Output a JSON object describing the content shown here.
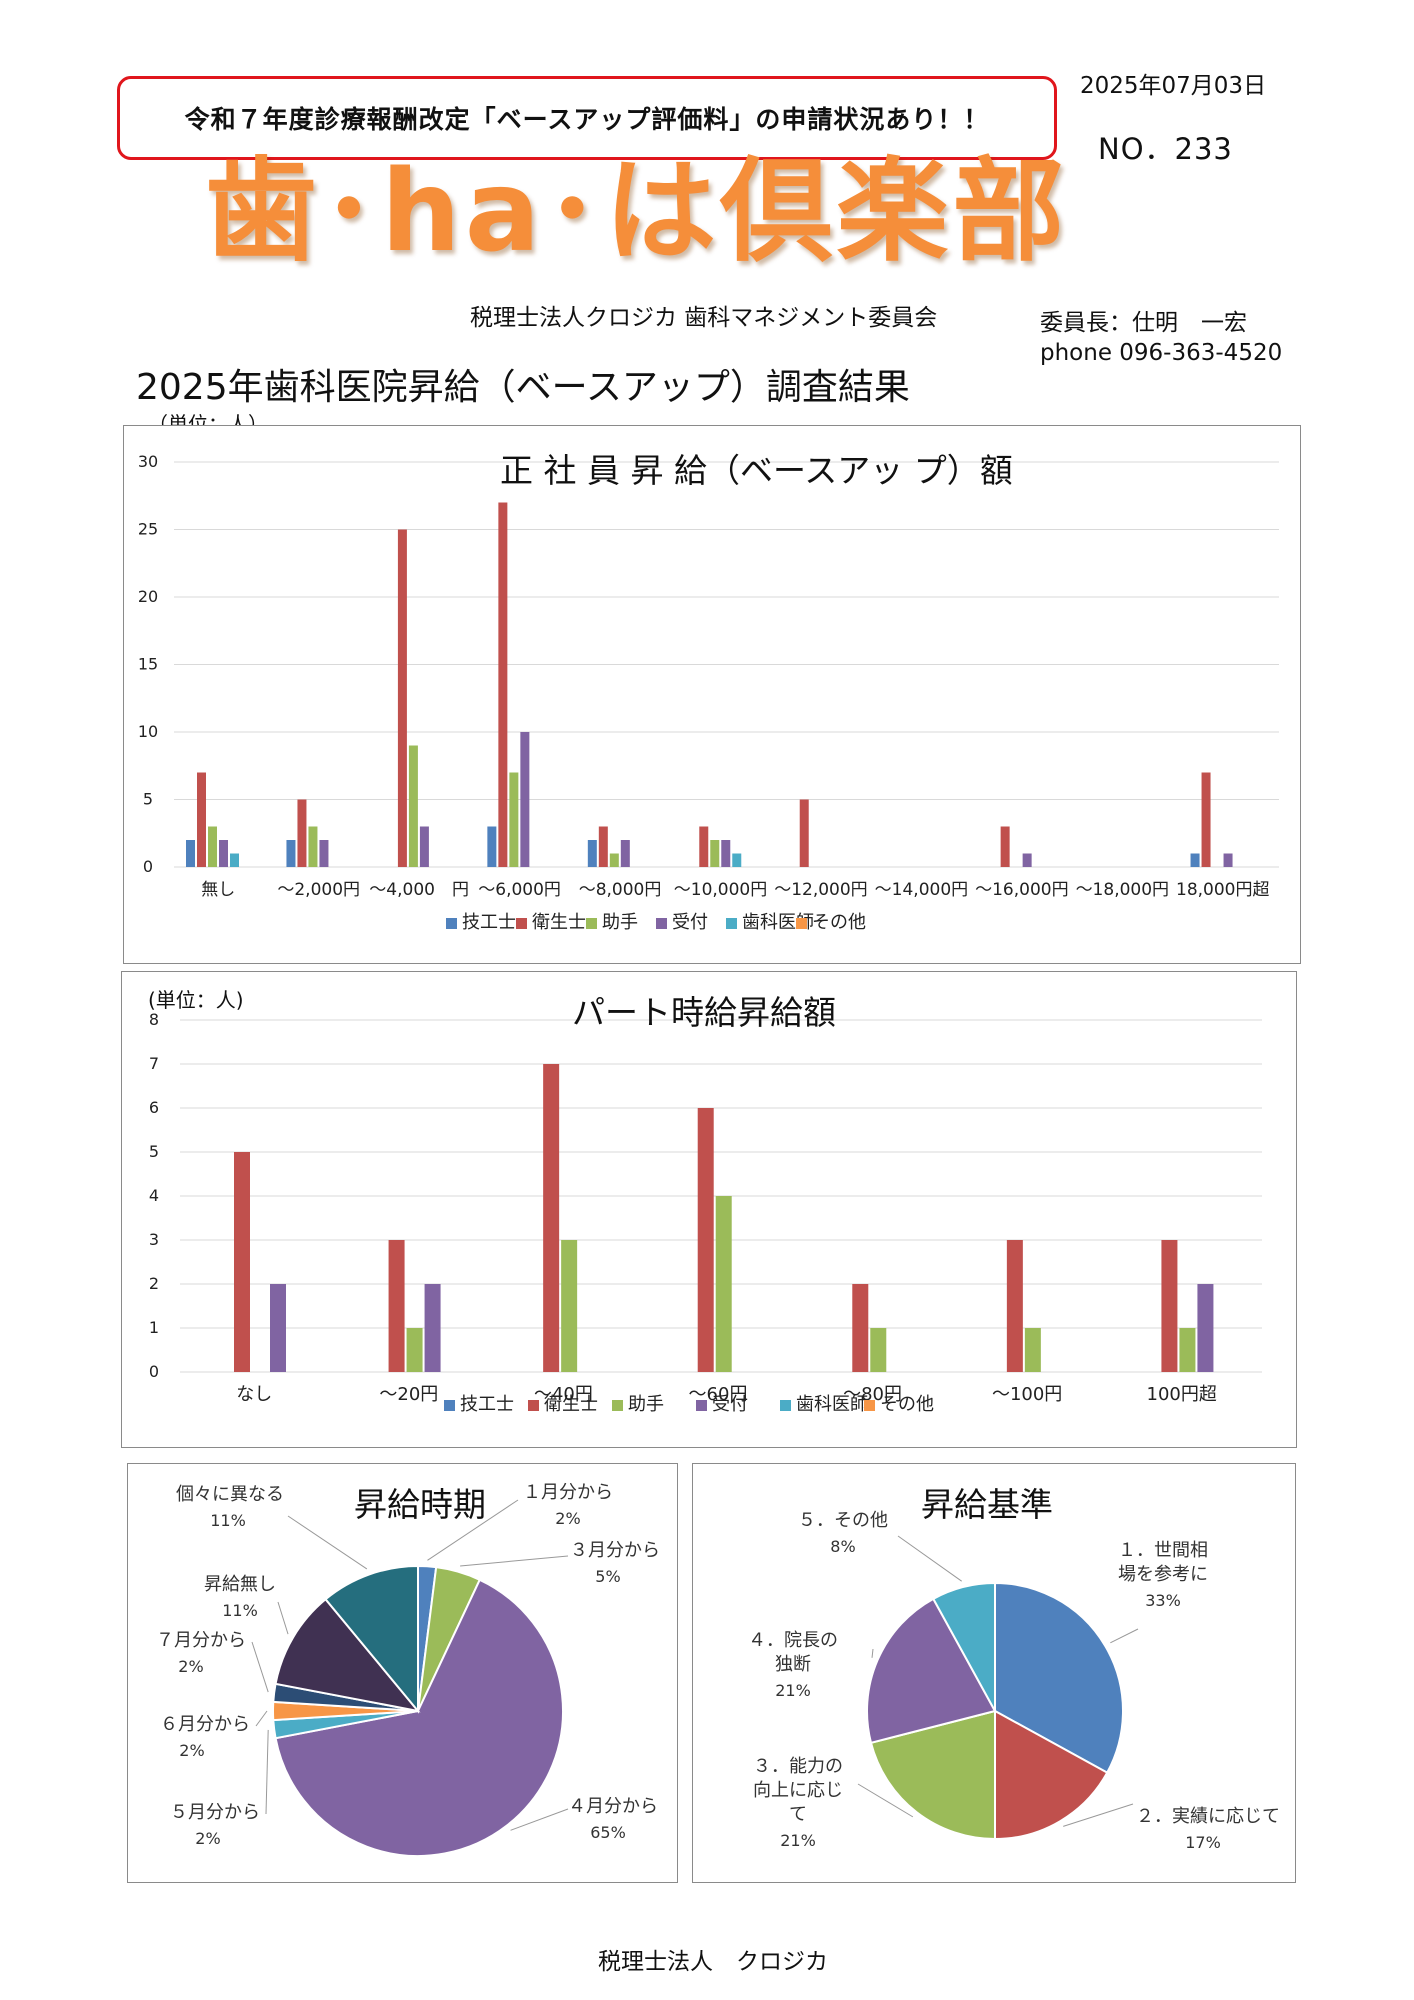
{
  "header": {
    "notice": "令和７年度診療報酬改定「ベースアップ評価料」の申請状況あり！！",
    "date": "2025年07月03日",
    "issue_no": "NO．233",
    "logo_text": "歯･ha･は倶楽部",
    "organization": "税理士法人クロジカ 歯科マネジメント委員会",
    "chair": "委員長：仕明　一宏",
    "phone": "phone 096-363-4520"
  },
  "main": {
    "title": "2025年歯科医院昇給（ベースアップ）調査結果"
  },
  "footer": {
    "text": "税理士法人　クロジカ"
  },
  "colors": {
    "技工士": "#4f81bd",
    "衛生士": "#c0504d",
    "助手": "#9bbb59",
    "受付": "#8064a2",
    "歯科医師": "#4bacc6",
    "その他": "#f79646"
  },
  "chart_data": [
    {
      "type": "bar",
      "title": "正 社 員 昇 給（ベースアッ プ）額",
      "unit_label": "（単位：人）",
      "categories": [
        "無し",
        "～2,000円",
        "～4,000　円",
        "～6,000円",
        "～8,000円",
        "～10,000円",
        "～12,000円",
        "～14,000円",
        "～16,000円",
        "～18,000円",
        "18,000円超"
      ],
      "ylim": [
        0,
        30
      ],
      "yticks": [
        0,
        5,
        10,
        15,
        20,
        25,
        30
      ],
      "grid": true,
      "legend": "bottom",
      "series": [
        {
          "name": "技工士",
          "values": [
            2,
            2,
            0,
            3,
            2,
            0,
            0,
            0,
            0,
            0,
            1
          ]
        },
        {
          "name": "衛生士",
          "values": [
            7,
            5,
            25,
            27,
            3,
            3,
            5,
            0,
            3,
            0,
            7
          ]
        },
        {
          "name": "助手",
          "values": [
            3,
            3,
            9,
            7,
            1,
            2,
            0,
            0,
            0,
            0,
            0
          ]
        },
        {
          "name": "受付",
          "values": [
            2,
            2,
            3,
            10,
            2,
            2,
            0,
            0,
            1,
            0,
            1
          ]
        },
        {
          "name": "歯科医師",
          "values": [
            1,
            0,
            0,
            0,
            0,
            1,
            0,
            0,
            0,
            0,
            0
          ]
        },
        {
          "name": "その他",
          "values": [
            0,
            0,
            0,
            0,
            0,
            0,
            0,
            0,
            0,
            0,
            0
          ]
        }
      ]
    },
    {
      "type": "bar",
      "title": "パート時給昇給額",
      "unit_label": "(単位：人)",
      "categories": [
        "なし",
        "～20円",
        "～40円",
        "～60円",
        "～80円",
        "～100円",
        "100円超"
      ],
      "ylim": [
        0,
        8
      ],
      "yticks": [
        0,
        1,
        2,
        3,
        4,
        5,
        6,
        7,
        8
      ],
      "grid": true,
      "legend": "bottom",
      "series": [
        {
          "name": "技工士",
          "values": [
            0,
            0,
            0,
            0,
            0,
            0,
            0
          ]
        },
        {
          "name": "衛生士",
          "values": [
            5,
            3,
            7,
            6,
            2,
            3,
            3
          ]
        },
        {
          "name": "助手",
          "values": [
            0,
            1,
            3,
            4,
            1,
            1,
            1
          ]
        },
        {
          "name": "受付",
          "values": [
            2,
            2,
            0,
            0,
            0,
            0,
            2
          ]
        },
        {
          "name": "歯科医師",
          "values": [
            0,
            0,
            0,
            0,
            0,
            0,
            0
          ]
        },
        {
          "name": "その他",
          "values": [
            0,
            0,
            0,
            0,
            0,
            0,
            0
          ]
        }
      ]
    },
    {
      "type": "pie",
      "title": "昇給時期",
      "slices": [
        {
          "label": "１月分から",
          "value": 2,
          "pct": "2%",
          "color": "#4f81bd"
        },
        {
          "label": "３月分から",
          "value": 5,
          "pct": "5%",
          "color": "#9bbb59"
        },
        {
          "label": "４月分から",
          "value": 65,
          "pct": "65%",
          "color": "#8064a2"
        },
        {
          "label": "５月分から",
          "value": 2,
          "pct": "2%",
          "color": "#4bacc6"
        },
        {
          "label": "６月分から",
          "value": 2,
          "pct": "2%",
          "color": "#f79646"
        },
        {
          "label": "７月分から",
          "value": 2,
          "pct": "2%",
          "color": "#2c4d75"
        },
        {
          "label": "昇給無し",
          "value": 11,
          "pct": "11%",
          "color": "#403152"
        },
        {
          "label": "個々に異なる",
          "value": 11,
          "pct": "11%",
          "color": "#256e7e"
        }
      ]
    },
    {
      "type": "pie",
      "title": "昇給基準",
      "slices": [
        {
          "label": "１．世間相場を参考に",
          "value": 33,
          "pct": "33%",
          "color": "#4f81bd"
        },
        {
          "label": "２．実績に応じて",
          "value": 17,
          "pct": "17%",
          "color": "#c0504d"
        },
        {
          "label": "３．能力の向上に応じて",
          "value": 21,
          "pct": "21%",
          "color": "#9bbb59"
        },
        {
          "label": "４．院長の独断",
          "value": 21,
          "pct": "21%",
          "color": "#8064a2"
        },
        {
          "label": "５．その他",
          "value": 8,
          "pct": "8%",
          "color": "#4bacc6"
        }
      ]
    }
  ]
}
